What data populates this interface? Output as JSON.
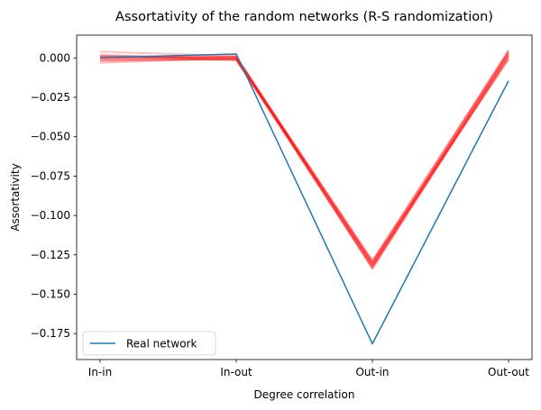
{
  "chart_data": {
    "type": "line",
    "title": "Assortativity of the random networks (R-S randomization)",
    "xlabel": "Degree correlation",
    "ylabel": "Assortativity",
    "categories": [
      "In-in",
      "In-out",
      "Out-in",
      "Out-out"
    ],
    "ylim": [
      -0.1915,
      0.0145
    ],
    "yticks": [
      0.0,
      -0.025,
      -0.05,
      -0.075,
      -0.1,
      -0.125,
      -0.15,
      -0.175
    ],
    "ytick_labels": [
      "0.000",
      "−0.025",
      "−0.050",
      "−0.075",
      "−0.100",
      "−0.125",
      "−0.150",
      "−0.175"
    ],
    "grid": false,
    "legend": {
      "position": "lower-left",
      "entries": [
        "Real network"
      ]
    },
    "series": [
      {
        "name": "Real network",
        "color": "#1f77b4",
        "values": [
          0.0002,
          0.0025,
          -0.1815,
          -0.0145
        ]
      }
    ],
    "random_series": {
      "color": "#ff0000",
      "opacity": 0.25,
      "runs": [
        [
          0.004,
          0.0012,
          -0.13,
          0.005
        ],
        [
          0.001,
          -0.001,
          -0.133,
          0.003
        ],
        [
          -0.002,
          -0.0005,
          -0.131,
          0.0
        ],
        [
          0.0005,
          0.0,
          -0.129,
          -0.001
        ],
        [
          -0.001,
          0.0008,
          -0.132,
          0.004
        ],
        [
          0.002,
          -0.0015,
          -0.1305,
          0.002
        ],
        [
          0.0,
          0.001,
          -0.134,
          0.001
        ],
        [
          -0.003,
          -0.0002,
          -0.1295,
          0.0035
        ],
        [
          0.0015,
          0.0005,
          -0.1315,
          -0.0005
        ],
        [
          -0.0005,
          -0.0012,
          -0.1325,
          0.0025
        ],
        [
          0.0008,
          0.0003,
          -0.1285,
          0.0045
        ],
        [
          -0.0015,
          -0.0008,
          -0.1335,
          0.0015
        ]
      ]
    }
  }
}
